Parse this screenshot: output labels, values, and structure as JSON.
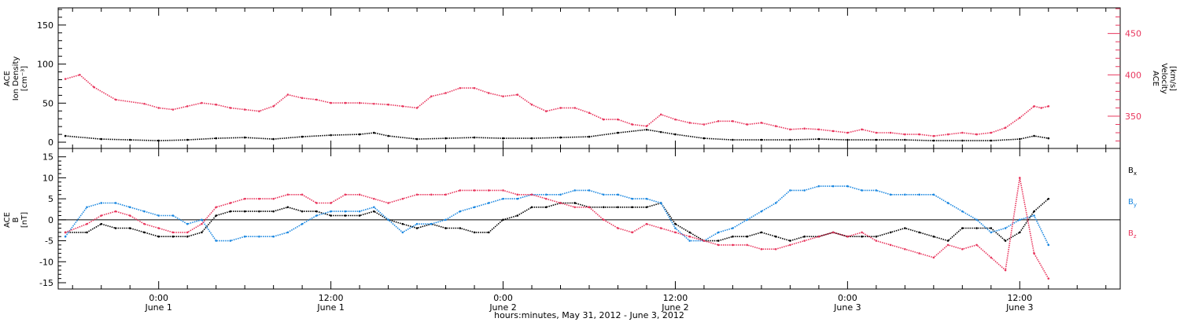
{
  "chart_data": [
    {
      "type": "scatter",
      "panel": "top",
      "ylabel_lines": [
        "ACE",
        "Ion Density",
        "[cm⁻³]"
      ],
      "ylim": [
        -8,
        172
      ],
      "yticks": [
        0,
        50,
        100,
        150
      ],
      "y2label_lines": [
        "ACE",
        "Velocity",
        "[km/s]"
      ],
      "y2lim": [
        311,
        481
      ],
      "y2ticks": [
        350,
        400,
        450
      ],
      "series": [
        {
          "axis": "left",
          "color": "#000000",
          "x": [
            -6.5,
            -4,
            -2,
            0,
            2,
            4,
            6,
            8,
            10,
            12,
            14,
            15,
            16,
            18,
            20,
            22,
            24,
            26,
            28,
            30,
            32,
            34,
            35,
            36,
            38,
            40,
            42,
            44,
            46,
            48,
            50,
            52,
            54,
            56,
            58,
            60,
            61,
            62
          ],
          "y": [
            8,
            4,
            3,
            2,
            3,
            5,
            6,
            4,
            7,
            9,
            10,
            12,
            8,
            4,
            5,
            6,
            5,
            5,
            6,
            7,
            12,
            16,
            13,
            10,
            5,
            3,
            3,
            3,
            4,
            3,
            3,
            3,
            2,
            2,
            2,
            4,
            8,
            5
          ]
        },
        {
          "axis": "right",
          "color": "#e8365d",
          "x": [
            -6.5,
            -5.5,
            -4.5,
            -3,
            -1,
            0,
            1,
            2,
            3,
            4,
            5,
            6,
            7,
            8,
            9,
            10,
            11,
            12,
            13,
            14,
            15,
            16,
            17,
            18,
            19,
            20,
            21,
            22,
            23,
            24,
            25,
            26,
            27,
            28,
            29,
            30,
            31,
            32,
            33,
            34,
            35,
            36,
            37,
            38,
            39,
            40,
            41,
            42,
            43,
            44,
            45,
            46,
            47,
            48,
            49,
            50,
            51,
            52,
            53,
            54,
            55,
            56,
            57,
            58,
            59,
            60,
            61,
            61.5,
            62
          ],
          "y": [
            395,
            400,
            385,
            370,
            365,
            360,
            358,
            362,
            366,
            364,
            360,
            358,
            356,
            362,
            376,
            372,
            370,
            366,
            366,
            366,
            365,
            364,
            362,
            360,
            374,
            378,
            384,
            384,
            378,
            374,
            376,
            364,
            356,
            360,
            360,
            354,
            346,
            346,
            340,
            338,
            352,
            346,
            342,
            340,
            344,
            344,
            340,
            342,
            338,
            334,
            335,
            334,
            332,
            330,
            334,
            330,
            330,
            328,
            328,
            326,
            328,
            330,
            328,
            330,
            336,
            348,
            362,
            360,
            362
          ]
        }
      ]
    },
    {
      "type": "scatter",
      "panel": "bottom",
      "ylabel_lines": [
        "ACE",
        "B",
        "[nT]"
      ],
      "ylim": [
        -16.5,
        17
      ],
      "yticks": [
        -15,
        -10,
        -5,
        0,
        5,
        10,
        15
      ],
      "legend": [
        "Bx",
        "By",
        "Bz"
      ],
      "legend_position": "right",
      "series": [
        {
          "name": "Bx",
          "color": "#000000",
          "x": [
            -6.5,
            -5,
            -4,
            -3,
            -2,
            -1,
            0,
            1,
            2,
            3,
            4,
            5,
            6,
            7,
            8,
            9,
            10,
            11,
            12,
            13,
            14,
            15,
            16,
            17,
            18,
            19,
            20,
            21,
            22,
            23,
            24,
            25,
            26,
            27,
            28,
            29,
            30,
            31,
            32,
            33,
            34,
            35,
            36,
            37,
            38,
            39,
            40,
            41,
            42,
            43,
            44,
            45,
            46,
            47,
            48,
            49,
            50,
            51,
            52,
            53,
            54,
            55,
            56,
            57,
            58,
            59,
            60,
            61,
            62
          ],
          "y": [
            -3,
            -3,
            -1,
            -2,
            -2,
            -3,
            -4,
            -4,
            -4,
            -3,
            1,
            2,
            2,
            2,
            2,
            3,
            2,
            2,
            1,
            1,
            1,
            2,
            0,
            -1,
            -2,
            -1,
            -2,
            -2,
            -3,
            -3,
            0,
            1,
            3,
            3,
            4,
            4,
            3,
            3,
            3,
            3,
            3,
            4,
            -1,
            -3,
            -5,
            -5,
            -4,
            -4,
            -3,
            -4,
            -5,
            -4,
            -4,
            -3,
            -4,
            -4,
            -4,
            -3,
            -2,
            -3,
            -4,
            -5,
            -2,
            -2,
            -2,
            -5,
            -3,
            2,
            5
          ]
        },
        {
          "name": "By",
          "color": "#1a87e0",
          "x": [
            -6.5,
            -5,
            -4,
            -3,
            -2,
            -1,
            0,
            1,
            2,
            3,
            4,
            5,
            6,
            7,
            8,
            9,
            10,
            11,
            12,
            13,
            14,
            15,
            16,
            17,
            18,
            19,
            20,
            21,
            22,
            23,
            24,
            25,
            26,
            27,
            28,
            29,
            30,
            31,
            32,
            33,
            34,
            35,
            36,
            37,
            38,
            39,
            40,
            41,
            42,
            43,
            44,
            45,
            46,
            47,
            48,
            49,
            50,
            51,
            52,
            53,
            54,
            55,
            56,
            57,
            58,
            59,
            60,
            61,
            62
          ],
          "y": [
            -4,
            3,
            4,
            4,
            3,
            2,
            1,
            1,
            -1,
            0,
            -5,
            -5,
            -4,
            -4,
            -4,
            -3,
            -1,
            1,
            2,
            2,
            2,
            3,
            0,
            -3,
            -1,
            -1,
            0,
            2,
            3,
            4,
            5,
            5,
            6,
            6,
            6,
            7,
            7,
            6,
            6,
            5,
            5,
            4,
            -2,
            -5,
            -5,
            -3,
            -2,
            0,
            2,
            4,
            7,
            7,
            8,
            8,
            8,
            7,
            7,
            6,
            6,
            6,
            6,
            4,
            2,
            0,
            -3,
            -2,
            0,
            1,
            -6
          ]
        },
        {
          "name": "Bz",
          "color": "#e8365d",
          "x": [
            -6.5,
            -5,
            -4,
            -3,
            -2,
            -1,
            0,
            1,
            2,
            3,
            4,
            5,
            6,
            7,
            8,
            9,
            10,
            11,
            12,
            13,
            14,
            15,
            16,
            17,
            18,
            19,
            20,
            21,
            22,
            23,
            24,
            25,
            26,
            27,
            28,
            29,
            30,
            31,
            32,
            33,
            34,
            35,
            36,
            37,
            38,
            39,
            40,
            41,
            42,
            43,
            44,
            45,
            46,
            47,
            48,
            49,
            50,
            51,
            52,
            53,
            54,
            55,
            56,
            57,
            58,
            59,
            60,
            61,
            62
          ],
          "y": [
            -3,
            -1,
            1,
            2,
            1,
            -1,
            -2,
            -3,
            -3,
            -1,
            3,
            4,
            5,
            5,
            5,
            6,
            6,
            4,
            4,
            6,
            6,
            5,
            4,
            5,
            6,
            6,
            6,
            7,
            7,
            7,
            7,
            6,
            6,
            5,
            4,
            3,
            3,
            0,
            -2,
            -3,
            -1,
            -2,
            -3,
            -4,
            -5,
            -6,
            -6,
            -6,
            -7,
            -7,
            -6,
            -5,
            -4,
            -3,
            -4,
            -3,
            -5,
            -6,
            -7,
            -8,
            -9,
            -6,
            -7,
            -6,
            -9,
            -12,
            10,
            -8,
            -14
          ]
        }
      ]
    }
  ],
  "time_axis": {
    "xlim": [
      -7,
      67
    ],
    "minor_step_hours": 2,
    "major_ticks": [
      {
        "x": 0,
        "time": "0:00",
        "date": "June 1"
      },
      {
        "x": 12,
        "time": "12:00",
        "date": "June 1"
      },
      {
        "x": 24,
        "time": "0:00",
        "date": "June 2"
      },
      {
        "x": 36,
        "time": "12:00",
        "date": "June 2"
      },
      {
        "x": 48,
        "time": "0:00",
        "date": "June 3"
      },
      {
        "x": 60,
        "time": "12:00",
        "date": "June 3"
      }
    ],
    "label": "hours:minutes, May 31, 2012 - June  3, 2012"
  },
  "colors": {
    "black": "#000000",
    "pink": "#e8365d",
    "blue": "#1a87e0"
  }
}
